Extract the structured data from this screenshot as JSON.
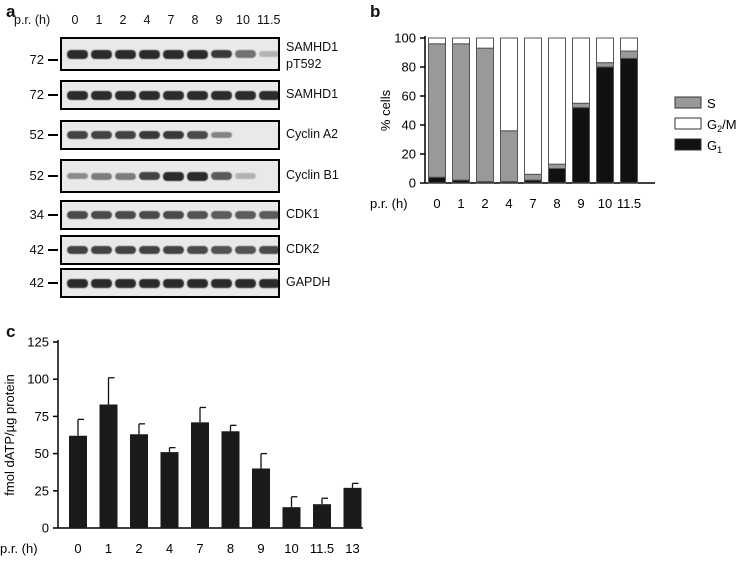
{
  "panel_labels": {
    "a": "a",
    "b": "b",
    "c": "c"
  },
  "panel_a": {
    "time_label": "p.r. (h)",
    "lanes": [
      "0",
      "1",
      "2",
      "4",
      "7",
      "8",
      "9",
      "10",
      "11.5"
    ],
    "blots": [
      {
        "name": "SAMHD1 pT592",
        "label_lines": [
          "SAMHD1",
          "pT592"
        ],
        "mw": "72",
        "intensity": [
          1,
          1,
          1,
          1,
          1,
          1,
          0.9,
          0.55,
          0.15
        ]
      },
      {
        "name": "SAMHD1",
        "label_lines": [
          "SAMHD1"
        ],
        "mw": "72",
        "intensity": [
          1,
          1,
          1,
          1,
          1,
          1,
          1,
          1,
          1
        ]
      },
      {
        "name": "Cyclin A2",
        "label_lines": [
          "Cyclin A2"
        ],
        "mw": "52",
        "intensity": [
          0.85,
          0.85,
          0.85,
          0.9,
          0.9,
          0.8,
          0.45,
          0,
          0
        ]
      },
      {
        "name": "Cyclin B1",
        "label_lines": [
          "Cyclin B1"
        ],
        "mw": "52",
        "intensity": [
          0.4,
          0.5,
          0.5,
          0.85,
          1,
          1,
          0.7,
          0.15,
          0
        ]
      },
      {
        "name": "CDK1",
        "label_lines": [
          "CDK1"
        ],
        "mw": "34",
        "intensity": [
          0.8,
          0.8,
          0.8,
          0.8,
          0.8,
          0.75,
          0.7,
          0.7,
          0.7
        ]
      },
      {
        "name": "CDK2",
        "label_lines": [
          "CDK2"
        ],
        "mw": "42",
        "intensity": [
          0.85,
          0.85,
          0.85,
          0.85,
          0.85,
          0.8,
          0.75,
          0.75,
          0.8
        ]
      },
      {
        "name": "GAPDH",
        "label_lines": [
          "GAPDH"
        ],
        "mw": "42",
        "intensity": [
          1,
          1,
          1,
          1,
          1,
          1,
          1,
          1,
          1
        ]
      }
    ]
  },
  "chart_data": [
    {
      "type": "bar",
      "stacked": true,
      "ylabel": "% cells",
      "xlabel": "p.r. (h)",
      "ylim": [
        0,
        100
      ],
      "yticks": [
        "0",
        "20",
        "40",
        "60",
        "80",
        "100"
      ],
      "categories": [
        "0",
        "1",
        "2",
        "4",
        "7",
        "8",
        "9",
        "10",
        "11.5"
      ],
      "series": [
        {
          "name": "G1",
          "values": [
            4,
            2,
            1,
            1,
            2,
            10,
            52,
            80,
            86
          ],
          "color": "#111111"
        },
        {
          "name": "S",
          "values": [
            92,
            94,
            92,
            35,
            4,
            3,
            3,
            3,
            5
          ],
          "color": "#999999"
        },
        {
          "name": "G2/M",
          "values": [
            4,
            4,
            7,
            64,
            94,
            87,
            45,
            17,
            9
          ],
          "color": "#ffffff"
        }
      ],
      "legend": [
        {
          "label": "S",
          "sub": "",
          "color": "#999999"
        },
        {
          "label": "G",
          "sub": "2",
          "suffix": "/M",
          "color": "#ffffff"
        },
        {
          "label": "G",
          "sub": "1",
          "suffix": "",
          "color": "#111111"
        }
      ]
    },
    {
      "type": "bar",
      "ylabel": "fmol dATP/µg protein",
      "xlabel": "p.r. (h)",
      "ylim": [
        0,
        125
      ],
      "yticks": [
        "0",
        "25",
        "50",
        "75",
        "100",
        "125"
      ],
      "categories": [
        "0",
        "1",
        "2",
        "4",
        "7",
        "8",
        "9",
        "10",
        "11.5",
        "13"
      ],
      "values": [
        62,
        83,
        63,
        51,
        71,
        65,
        40,
        14,
        16,
        27
      ],
      "errors": [
        11,
        18,
        7,
        3,
        10,
        4,
        10,
        7,
        4,
        3
      ]
    }
  ]
}
